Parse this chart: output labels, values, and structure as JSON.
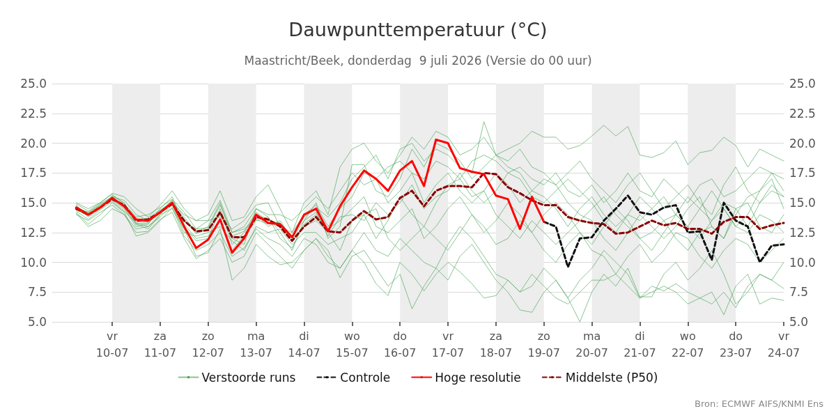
{
  "chart_data": {
    "type": "line",
    "title": "Dauwpunttemperatuur (°C)",
    "subtitle": "Maastricht/Beek, donderdag  9 juli 2026 (Versie do 00 uur)",
    "annotations": [
      "Bron: ECMWF AIFS/KNMI Ens"
    ],
    "x": [
      "2026-07-09T06:00",
      "2026-07-09T12:00",
      "2026-07-09T18:00",
      "2026-07-10T00:00",
      "2026-07-10T06:00",
      "2026-07-10T12:00",
      "2026-07-10T18:00",
      "2026-07-11T00:00",
      "2026-07-11T06:00",
      "2026-07-11T12:00",
      "2026-07-11T18:00",
      "2026-07-12T00:00",
      "2026-07-12T06:00",
      "2026-07-12T12:00",
      "2026-07-12T18:00",
      "2026-07-13T00:00",
      "2026-07-13T06:00",
      "2026-07-13T12:00",
      "2026-07-13T18:00",
      "2026-07-14T00:00",
      "2026-07-14T06:00",
      "2026-07-14T12:00",
      "2026-07-14T18:00",
      "2026-07-15T00:00",
      "2026-07-15T06:00",
      "2026-07-15T12:00",
      "2026-07-15T18:00",
      "2026-07-16T00:00",
      "2026-07-16T06:00",
      "2026-07-16T12:00",
      "2026-07-16T18:00",
      "2026-07-17T00:00",
      "2026-07-17T06:00",
      "2026-07-17T12:00",
      "2026-07-17T18:00",
      "2026-07-18T00:00",
      "2026-07-18T06:00",
      "2026-07-18T12:00",
      "2026-07-18T18:00",
      "2026-07-19T00:00",
      "2026-07-19T06:00",
      "2026-07-19T12:00",
      "2026-07-19T18:00",
      "2026-07-20T00:00",
      "2026-07-20T06:00",
      "2026-07-20T12:00",
      "2026-07-20T18:00",
      "2026-07-21T00:00",
      "2026-07-21T06:00",
      "2026-07-21T12:00",
      "2026-07-21T18:00",
      "2026-07-22T00:00",
      "2026-07-22T06:00",
      "2026-07-22T12:00",
      "2026-07-22T18:00",
      "2026-07-23T00:00",
      "2026-07-23T06:00",
      "2026-07-23T12:00",
      "2026-07-23T18:00",
      "2026-07-24T00:00"
    ],
    "series": [
      {
        "name": "Verstoorde runs",
        "color": "#3a9f4a",
        "line_style": "solid",
        "values": [
          14.8,
          13.8,
          14.5,
          15.6,
          15.0,
          13.2,
          12.8,
          14.0,
          15.2,
          13.8,
          12.5,
          13.0,
          15.0,
          12.0,
          11.5,
          14.5,
          13.8,
          12.5,
          11.0,
          13.5,
          15.0,
          12.0,
          13.0,
          18.2,
          18.2,
          16.0,
          15.5,
          17.0,
          19.5,
          18.0,
          20.0,
          19.5,
          18.5,
          17.0,
          18.0,
          19.0,
          18.0,
          17.5,
          16.0,
          17.0,
          16.5,
          15.0,
          14.0,
          13.5,
          12.0,
          11.0,
          12.5,
          14.0,
          13.0,
          12.0,
          13.0,
          14.5,
          15.5,
          13.0,
          12.0,
          14.0,
          15.5,
          16.0,
          17.5,
          16.0
        ]
      },
      {
        "color": "#3a9f4a",
        "line_style": "solid",
        "values": [
          14.2,
          13.2,
          14.0,
          15.0,
          14.2,
          12.2,
          12.5,
          13.5,
          14.6,
          12.2,
          11.0,
          11.5,
          12.5,
          10.5,
          11.2,
          12.8,
          12.0,
          11.5,
          10.5,
          12.0,
          11.5,
          10.0,
          9.5,
          11.0,
          12.5,
          11.0,
          10.5,
          12.0,
          11.0,
          10.0,
          9.5,
          11.5,
          13.0,
          12.0,
          10.5,
          9.0,
          8.5,
          7.5,
          8.0,
          9.5,
          8.5,
          7.0,
          5.0,
          7.5,
          9.0,
          8.0,
          9.5,
          7.1,
          7.1,
          9.0,
          10.0,
          8.5,
          9.5,
          11.0,
          9.0,
          6.5,
          7.5,
          9.0,
          8.5,
          10.0
        ]
      },
      {
        "color": "#3a9f4a",
        "line_style": "solid",
        "values": [
          15.0,
          14.5,
          15.0,
          15.8,
          15.5,
          14.5,
          13.8,
          14.8,
          16.0,
          14.5,
          13.5,
          14.0,
          16.0,
          13.5,
          13.8,
          15.5,
          16.5,
          14.5,
          12.5,
          15.0,
          16.0,
          14.0,
          18.0,
          19.5,
          20.0,
          18.5,
          17.5,
          19.0,
          20.5,
          19.5,
          21.0,
          20.5,
          19.0,
          19.5,
          20.5,
          19.0,
          19.5,
          20.0,
          21.0,
          20.5,
          20.5,
          19.5,
          19.8,
          20.6,
          21.5,
          20.6,
          21.4,
          19.0,
          18.8,
          19.2,
          20.2,
          18.2,
          19.2,
          19.4,
          20.5,
          19.8,
          18.0,
          19.5,
          19.0,
          18.5
        ]
      },
      {
        "color": "#3a9f4a",
        "line_style": "solid",
        "values": [
          14.5,
          14.0,
          14.8,
          15.2,
          14.5,
          13.0,
          13.2,
          14.5,
          15.5,
          13.0,
          11.8,
          12.0,
          14.5,
          11.5,
          12.5,
          14.0,
          13.0,
          13.5,
          12.0,
          13.0,
          13.5,
          12.5,
          11.0,
          13.5,
          14.0,
          12.0,
          13.5,
          15.5,
          14.0,
          13.0,
          15.0,
          16.5,
          17.0,
          15.5,
          16.0,
          14.0,
          13.0,
          12.0,
          13.5,
          12.5,
          11.5,
          12.5,
          13.5,
          14.5,
          15.5,
          14.0,
          13.0,
          12.0,
          12.5,
          13.5,
          12.0,
          11.0,
          12.5,
          13.0,
          12.0,
          14.5,
          15.0,
          13.0,
          12.5,
          14.0
        ]
      },
      {
        "color": "#3a9f4a",
        "line_style": "solid",
        "values": [
          14.0,
          13.5,
          14.2,
          14.8,
          14.0,
          12.8,
          13.0,
          14.0,
          14.5,
          12.8,
          10.5,
          10.8,
          12.8,
          8.5,
          9.5,
          11.5,
          10.5,
          9.8,
          10.0,
          11.0,
          12.0,
          11.0,
          8.7,
          10.5,
          11.0,
          9.5,
          8.0,
          9.0,
          6.1,
          8.0,
          9.5,
          8.5,
          10.5,
          11.5,
          10.0,
          8.5,
          7.5,
          6.0,
          5.8,
          7.5,
          8.5,
          7.0,
          8.5,
          9.5,
          11.0,
          10.0,
          9.0,
          7.0,
          8.0,
          7.6,
          8.2,
          7.5,
          7.0,
          7.5,
          5.6,
          8.0,
          9.0,
          6.5,
          7.0,
          6.8
        ]
      },
      {
        "color": "#3a9f4a",
        "line_style": "solid",
        "values": [
          14.6,
          14.2,
          14.8,
          15.5,
          15.2,
          14.0,
          13.5,
          14.2,
          15.0,
          14.0,
          13.5,
          13.5,
          15.2,
          12.5,
          13.0,
          14.5,
          14.0,
          14.0,
          13.5,
          14.5,
          15.5,
          14.5,
          16.0,
          17.5,
          16.5,
          17.0,
          18.0,
          18.5,
          17.5,
          17.0,
          18.5,
          18.0,
          17.0,
          18.5,
          19.0,
          18.5,
          17.5,
          18.0,
          17.0,
          16.5,
          17.5,
          16.0,
          15.5,
          16.5,
          15.0,
          16.0,
          17.5,
          16.0,
          15.5,
          17.0,
          16.0,
          15.0,
          16.5,
          17.0,
          15.5,
          16.0,
          17.0,
          18.0,
          17.5,
          17.0
        ]
      },
      {
        "color": "#3a9f4a",
        "line_style": "solid",
        "values": [
          14.3,
          13.6,
          14.4,
          15.1,
          14.3,
          13.3,
          13.0,
          13.8,
          14.8,
          12.5,
          12.2,
          12.5,
          13.0,
          11.8,
          11.0,
          13.0,
          12.5,
          12.8,
          11.5,
          12.5,
          12.5,
          11.5,
          12.0,
          12.5,
          14.0,
          14.5,
          12.0,
          11.0,
          12.0,
          13.0,
          12.0,
          11.0,
          12.5,
          14.0,
          13.0,
          11.5,
          12.0,
          13.5,
          12.5,
          11.0,
          10.0,
          11.5,
          12.5,
          11.0,
          10.5,
          9.0,
          10.5,
          11.5,
          10.0,
          11.0,
          12.5,
          12.0,
          10.5,
          9.5,
          11.0,
          12.0,
          11.5,
          10.0,
          11.0,
          12.0
        ]
      },
      {
        "color": "#3a9f4a",
        "line_style": "solid",
        "values": [
          14.9,
          14.3,
          15.0,
          15.7,
          14.9,
          13.8,
          14.0,
          14.6,
          15.3,
          14.2,
          12.8,
          13.5,
          13.8,
          12.8,
          13.5,
          14.8,
          15.0,
          13.0,
          12.5,
          14.0,
          14.8,
          13.0,
          14.5,
          15.5,
          17.5,
          17.0,
          15.0,
          16.0,
          17.5,
          15.0,
          16.5,
          17.5,
          16.0,
          15.0,
          16.0,
          17.5,
          16.5,
          15.0,
          16.0,
          15.5,
          14.5,
          13.0,
          14.5,
          15.5,
          14.0,
          13.0,
          14.0,
          15.5,
          14.5,
          13.5,
          14.0,
          15.5,
          14.5,
          13.5,
          15.0,
          14.5,
          13.0,
          15.0,
          16.5,
          15.5
        ]
      },
      {
        "color": "#3a9f4a",
        "line_style": "solid",
        "values": [
          14.4,
          13.9,
          14.6,
          15.3,
          14.6,
          13.2,
          13.3,
          14.3,
          15.2,
          13.2,
          12.0,
          12.2,
          13.5,
          11.0,
          12.2,
          13.5,
          13.8,
          12.0,
          11.2,
          13.2,
          14.0,
          12.8,
          13.5,
          14.5,
          15.5,
          13.0,
          12.5,
          13.5,
          14.5,
          12.0,
          13.0,
          14.5,
          15.5,
          14.0,
          12.5,
          13.5,
          15.0,
          14.0,
          12.5,
          14.0,
          15.0,
          14.0,
          12.5,
          11.5,
          13.0,
          14.5,
          13.5,
          12.0,
          11.0,
          12.5,
          14.0,
          13.0,
          12.0,
          13.5,
          14.5,
          13.0,
          12.5,
          14.0,
          13.5,
          12.5
        ]
      },
      {
        "color": "#3a9f4a",
        "line_style": "solid",
        "values": [
          14.7,
          14.1,
          14.7,
          15.4,
          14.7,
          13.6,
          13.7,
          14.4,
          15.0,
          13.6,
          12.4,
          12.8,
          14.0,
          12.2,
          12.6,
          14.2,
          13.5,
          13.3,
          12.2,
          13.8,
          14.6,
          13.8,
          15.0,
          17.0,
          18.0,
          19.0,
          17.0,
          19.5,
          20.0,
          18.5,
          19.5,
          19.0,
          18.0,
          17.5,
          21.8,
          19.0,
          18.5,
          19.5,
          18.0,
          17.5,
          16.5,
          17.5,
          18.5,
          17.0,
          16.0,
          15.0,
          16.5,
          17.5,
          16.0,
          14.5,
          15.5,
          16.5,
          15.0,
          14.0,
          16.5,
          18.0,
          16.0,
          15.0,
          16.0,
          15.5
        ]
      },
      {
        "color": "#3a9f4a",
        "line_style": "solid",
        "values": [
          14.1,
          13.0,
          13.5,
          14.5,
          14.0,
          12.5,
          12.6,
          13.6,
          14.2,
          12.0,
          10.3,
          11.0,
          12.0,
          10.0,
          10.5,
          12.5,
          11.5,
          10.5,
          9.5,
          11.0,
          12.0,
          10.5,
          9.5,
          11.0,
          10.0,
          8.2,
          7.2,
          10.0,
          9.0,
          7.6,
          9.0,
          10.0,
          9.2,
          8.2,
          7.0,
          7.2,
          8.5,
          7.5,
          9.0,
          8.0,
          7.0,
          6.5,
          7.5,
          8.5,
          8.5,
          9.0,
          8.0,
          7.0,
          7.5,
          8.0,
          7.5,
          6.5,
          7.0,
          6.5,
          7.5,
          6.2,
          8.0,
          9.0,
          8.5,
          7.8
        ]
      },
      {
        "color": "#3a9f4a",
        "line_style": "solid",
        "values": [
          14.5,
          14.2,
          14.9,
          15.5,
          14.8,
          13.4,
          13.4,
          14.1,
          14.9,
          13.4,
          12.8,
          12.9,
          14.8,
          12.5,
          12.8,
          13.6,
          13.2,
          13.3,
          12.0,
          13.5,
          14.2,
          12.2,
          13.8,
          14.0,
          13.5,
          15.0,
          14.0,
          15.0,
          16.5,
          14.5,
          15.5,
          16.0,
          17.5,
          16.0,
          15.0,
          16.0,
          17.5,
          17.0,
          15.5,
          15.0,
          16.0,
          17.0,
          16.0,
          15.0,
          13.5,
          12.5,
          14.0,
          13.5,
          14.5,
          15.5,
          14.0,
          13.0,
          14.5,
          16.0,
          14.5,
          13.0,
          14.0,
          16.0,
          17.0,
          14.5
        ]
      },
      {
        "name": "Controle",
        "color": "#111111",
        "line_style": "dashed",
        "values": [
          null,
          null,
          null,
          null,
          null,
          null,
          null,
          null,
          null,
          null,
          null,
          null,
          null,
          null,
          null,
          null,
          null,
          null,
          null,
          null,
          null,
          null,
          null,
          null,
          null,
          null,
          null,
          null,
          null,
          null,
          null,
          null,
          null,
          null,
          null,
          null,
          null,
          null,
          null,
          13.4,
          13.0,
          9.6,
          12.0,
          12.1,
          13.5,
          14.5,
          15.6,
          14.2,
          14.0,
          14.6,
          14.8,
          12.5,
          12.6,
          10.2,
          15.0,
          13.5,
          13.0,
          10.0,
          11.4,
          11.5
        ]
      },
      {
        "name": "Hoge resolutie",
        "color": "#ff0000",
        "line_style": "solid",
        "values": [
          14.6,
          14.0,
          14.6,
          15.4,
          14.7,
          13.6,
          13.5,
          14.2,
          15.0,
          13.0,
          11.2,
          11.9,
          13.6,
          10.8,
          12.0,
          14.0,
          13.3,
          13.2,
          12.1,
          14.0,
          14.5,
          12.6,
          14.7,
          16.3,
          17.7,
          17.0,
          16.0,
          17.7,
          18.5,
          16.4,
          20.3,
          20.0,
          17.9,
          17.6,
          17.4,
          15.6,
          15.3,
          12.8,
          15.5,
          13.4,
          null,
          null,
          null,
          null,
          null,
          null,
          null,
          null,
          null,
          null,
          null,
          null,
          null,
          null,
          null,
          null,
          null,
          null,
          null,
          null
        ]
      },
      {
        "name": "Middelste (P50)",
        "color": "#8b0000",
        "line_style": "dashed",
        "values": [
          14.5,
          14.0,
          14.6,
          15.3,
          14.8,
          13.5,
          13.6,
          14.2,
          14.9,
          13.5,
          12.6,
          12.7,
          14.2,
          12.1,
          12.1,
          13.8,
          13.6,
          13.0,
          11.8,
          13.0,
          13.8,
          12.6,
          12.5,
          13.5,
          14.3,
          13.6,
          13.8,
          15.4,
          16.0,
          14.7,
          16.0,
          16.4,
          16.4,
          16.3,
          17.5,
          17.4,
          16.3,
          15.8,
          15.2,
          14.8,
          14.8,
          13.8,
          13.5,
          13.3,
          13.2,
          12.4,
          12.5,
          13.0,
          13.5,
          13.1,
          13.3,
          12.8,
          12.8,
          12.4,
          13.4,
          13.8,
          13.8,
          12.8,
          13.1,
          13.3
        ]
      }
    ],
    "xlim": [
      "2026-07-08T18:00",
      "2026-07-24T00:00"
    ],
    "xticks": [
      {
        "value": "2026-07-10T00:00",
        "label": "vr\n10-07"
      },
      {
        "value": "2026-07-11T00:00",
        "label": "za\n11-07"
      },
      {
        "value": "2026-07-12T00:00",
        "label": "zo\n12-07"
      },
      {
        "value": "2026-07-13T00:00",
        "label": "ma\n13-07"
      },
      {
        "value": "2026-07-14T00:00",
        "label": "di\n14-07"
      },
      {
        "value": "2026-07-15T00:00",
        "label": "wo\n15-07"
      },
      {
        "value": "2026-07-16T00:00",
        "label": "do\n16-07"
      },
      {
        "value": "2026-07-17T00:00",
        "label": "vr\n17-07"
      },
      {
        "value": "2026-07-18T00:00",
        "label": "za\n18-07"
      },
      {
        "value": "2026-07-19T00:00",
        "label": "zo\n19-07"
      },
      {
        "value": "2026-07-20T00:00",
        "label": "ma\n20-07"
      },
      {
        "value": "2026-07-21T00:00",
        "label": "di\n21-07"
      },
      {
        "value": "2026-07-22T00:00",
        "label": "wo\n22-07"
      },
      {
        "value": "2026-07-23T00:00",
        "label": "do\n23-07"
      },
      {
        "value": "2026-07-24T00:00",
        "label": "vr\n24-07"
      }
    ],
    "ylim": [
      5,
      25
    ],
    "yticks": [
      {
        "value": 5,
        "label": "5.0"
      },
      {
        "value": 7.5,
        "label": "7.5"
      },
      {
        "value": 10,
        "label": "10.0"
      },
      {
        "value": 12.5,
        "label": "12.5"
      },
      {
        "value": 15,
        "label": "15.0"
      },
      {
        "value": 17.5,
        "label": "17.5"
      },
      {
        "value": 20,
        "label": "20.0"
      },
      {
        "value": 22.5,
        "label": "22.5"
      },
      {
        "value": 25,
        "label": "25.0"
      }
    ],
    "y2lim": [
      5,
      25
    ],
    "y2ticks": [
      {
        "value": 5,
        "label": "5.0"
      },
      {
        "value": 7.5,
        "label": "7.5"
      },
      {
        "value": 10,
        "label": "10.0"
      },
      {
        "value": 12.5,
        "label": "12.5"
      },
      {
        "value": 15,
        "label": "15.0"
      },
      {
        "value": 17.5,
        "label": "17.5"
      },
      {
        "value": 20,
        "label": "20.0"
      },
      {
        "value": 22.5,
        "label": "22.5"
      },
      {
        "value": 25,
        "label": "25.0"
      }
    ],
    "bands": [
      {
        "axis": "x",
        "from": "2026-07-10T00:00",
        "to": "2026-07-11T00:00",
        "label": null,
        "color": "#ededed"
      },
      {
        "axis": "x",
        "from": "2026-07-12T00:00",
        "to": "2026-07-13T00:00",
        "label": null,
        "color": "#ededed"
      },
      {
        "axis": "x",
        "from": "2026-07-14T00:00",
        "to": "2026-07-15T00:00",
        "label": null,
        "color": "#ededed"
      },
      {
        "axis": "x",
        "from": "2026-07-16T00:00",
        "to": "2026-07-17T00:00",
        "label": null,
        "color": "#ededed"
      },
      {
        "axis": "x",
        "from": "2026-07-18T00:00",
        "to": "2026-07-19T00:00",
        "label": null,
        "color": "#ededed"
      },
      {
        "axis": "x",
        "from": "2026-07-20T00:00",
        "to": "2026-07-21T00:00",
        "label": null,
        "color": "#ededed"
      },
      {
        "axis": "x",
        "from": "2026-07-22T00:00",
        "to": "2026-07-23T00:00",
        "label": null,
        "color": "#ededed"
      }
    ],
    "grid": "y",
    "legend": "bottom",
    "marker": "none"
  }
}
